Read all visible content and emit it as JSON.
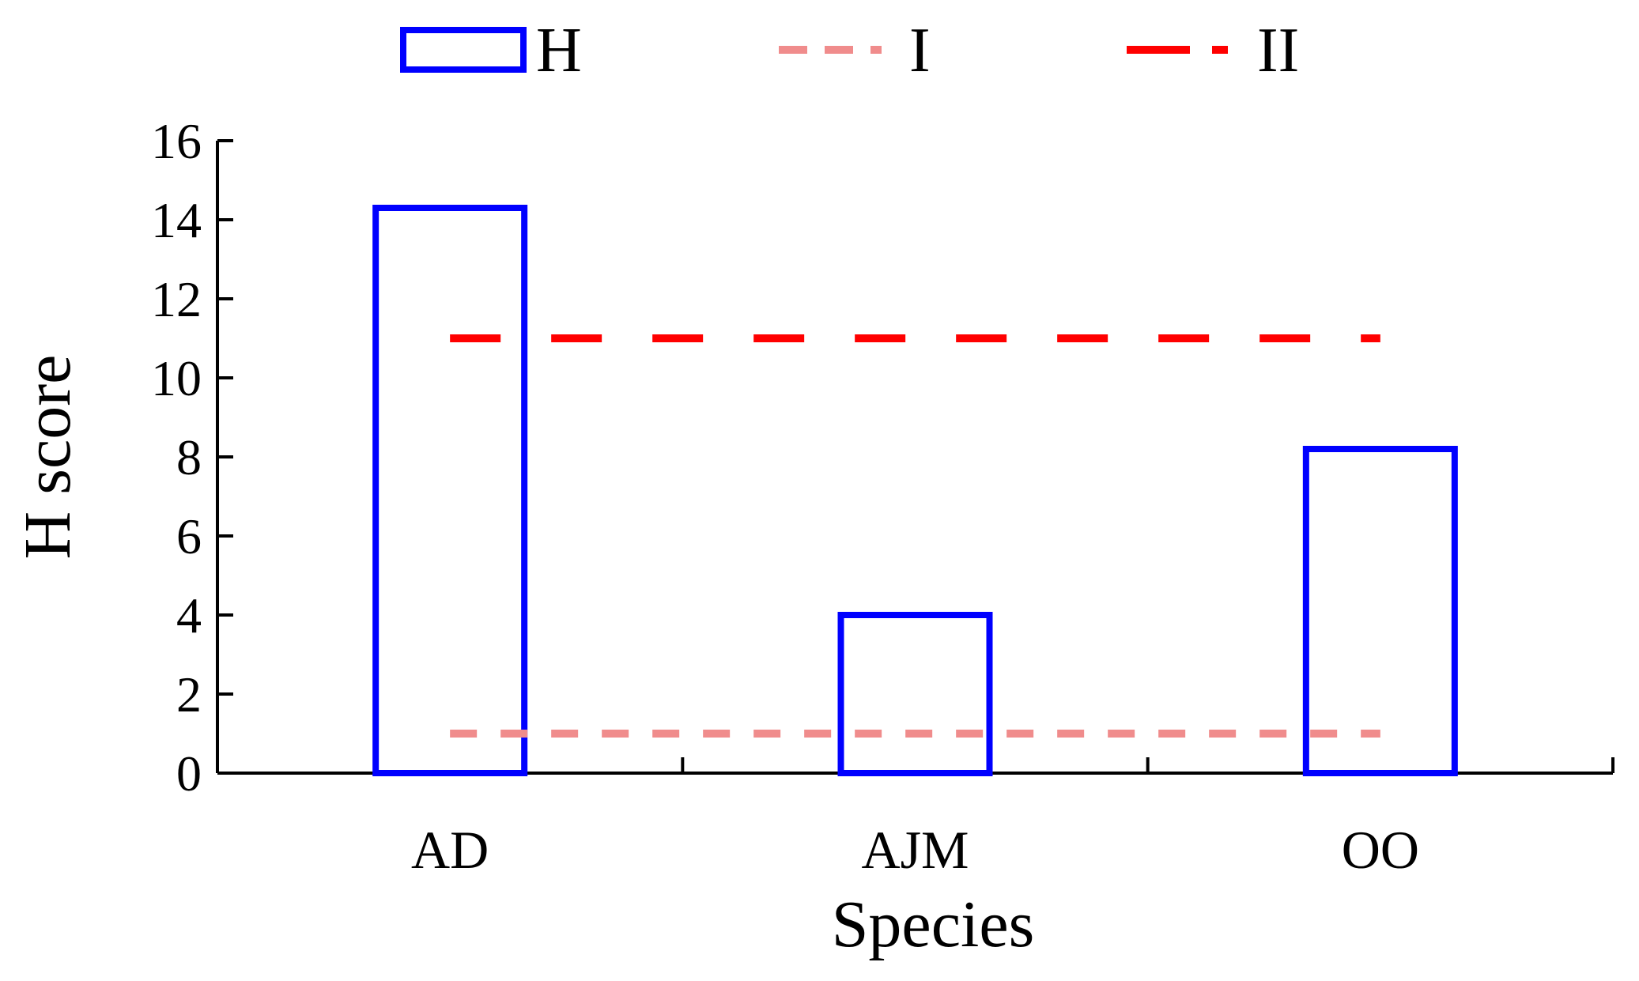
{
  "chart_data": {
    "type": "bar",
    "xlabel": "Species",
    "ylabel": "H score",
    "categories": [
      "AD",
      "AJM",
      "OO"
    ],
    "ylim": [
      0,
      16
    ],
    "yticks": [
      "0",
      "2",
      "4",
      "6",
      "8",
      "10",
      "12",
      "14",
      "16"
    ],
    "series": [
      {
        "name": "H",
        "kind": "bar",
        "values": [
          14.3,
          4.0,
          8.2
        ],
        "color": "#0000ff",
        "fill": "none"
      }
    ],
    "reference_lines": [
      {
        "name": "I",
        "value": 1,
        "color": "#f08c8c",
        "style": "dashed"
      },
      {
        "name": "II",
        "value": 11,
        "color": "#ff0000",
        "style": "long-dashed"
      }
    ],
    "legend": {
      "placement": "top",
      "entries": [
        "H",
        "I",
        "II"
      ]
    },
    "grid": false
  }
}
